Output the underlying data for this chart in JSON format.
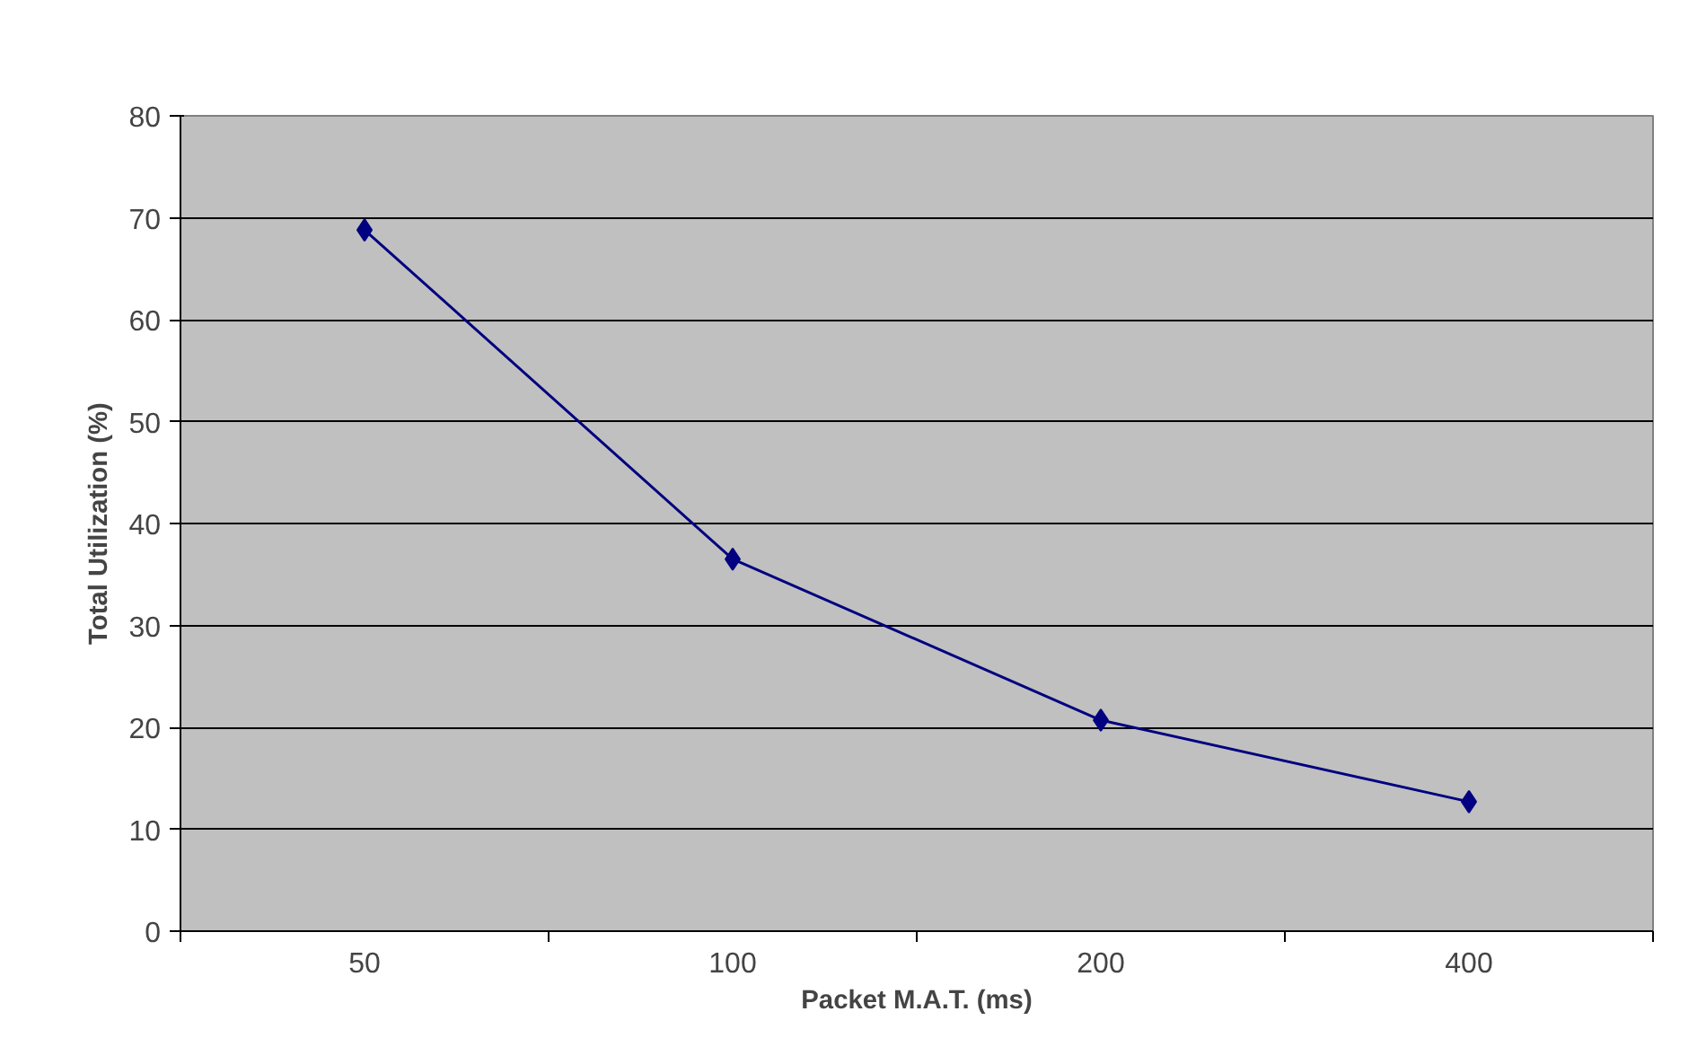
{
  "chart_data": {
    "type": "line",
    "xlabel": "Packet M.A.T. (ms)",
    "ylabel": "Total Utilization (%)",
    "categories": [
      "50",
      "100",
      "200",
      "400"
    ],
    "series": [
      {
        "color": "#000080",
        "values": [
          68.8,
          36.5,
          20.7,
          12.7
        ]
      }
    ],
    "ylim": [
      0,
      80
    ],
    "yticks": [
      0,
      10,
      20,
      30,
      40,
      50,
      60,
      70,
      80
    ],
    "grid": "y",
    "marker": "diamond",
    "line_style": "solid"
  }
}
